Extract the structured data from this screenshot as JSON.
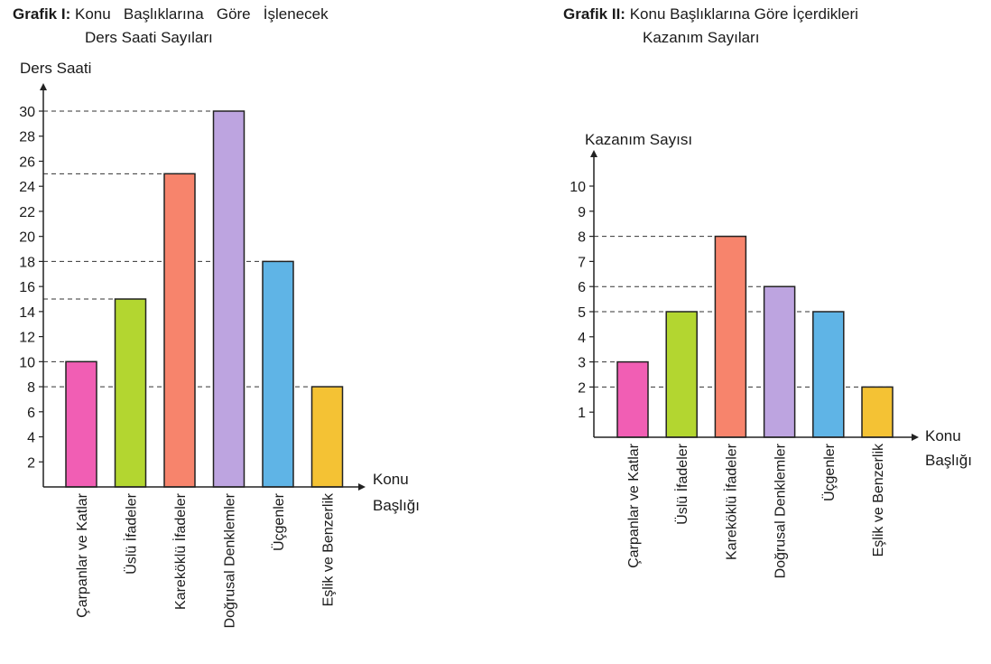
{
  "chart_data": [
    {
      "type": "bar",
      "title_prefix": "Grafik I:",
      "title_line1": "Konu   Başlıklarına   Göre   İşlenecek",
      "title_line2": "Ders Saati Sayıları",
      "ylabel": "Ders Saati",
      "xlabel_line1": "Konu",
      "xlabel_line2": "Başlığı",
      "categories": [
        "Çarpanlar ve Katlar",
        "Üslü İfadeler",
        "Kareköklü İfadeler",
        "Doğrusal Denklemler",
        "Üçgenler",
        "Eşlik ve Benzerlik"
      ],
      "values": [
        10,
        15,
        25,
        30,
        18,
        8
      ],
      "colors": [
        "#f15eb4",
        "#b3d630",
        "#f7846c",
        "#bda4e0",
        "#5fb4e6",
        "#f4c234"
      ],
      "yticks": [
        2,
        4,
        6,
        8,
        10,
        12,
        14,
        16,
        18,
        20,
        22,
        24,
        26,
        28,
        30
      ],
      "ylim": [
        0,
        30
      ],
      "guide_lines": [
        30,
        25,
        18,
        15,
        10,
        8
      ],
      "grid": false
    },
    {
      "type": "bar",
      "title_prefix": "Grafik II:",
      "title_line1": "Konu Başlıklarına Göre İçerdikleri",
      "title_line2": "Kazanım Sayıları",
      "ylabel": "Kazanım Sayısı",
      "xlabel_line1": "Konu",
      "xlabel_line2": "Başlığı",
      "categories": [
        "Çarpanlar ve Katlar",
        "Üslü İfadeler",
        "Kareköklü İfadeler",
        "Doğrusal Denklemler",
        "Üçgenler",
        "Eşlik ve Benzerlik"
      ],
      "values": [
        3,
        5,
        8,
        6,
        5,
        2
      ],
      "colors": [
        "#f15eb4",
        "#b3d630",
        "#f7846c",
        "#bda4e0",
        "#5fb4e6",
        "#f4c234"
      ],
      "yticks": [
        1,
        2,
        3,
        4,
        5,
        6,
        7,
        8,
        9,
        10
      ],
      "ylim": [
        0,
        10
      ],
      "guide_lines": [
        8,
        6,
        5,
        3,
        2
      ],
      "grid": false
    }
  ]
}
